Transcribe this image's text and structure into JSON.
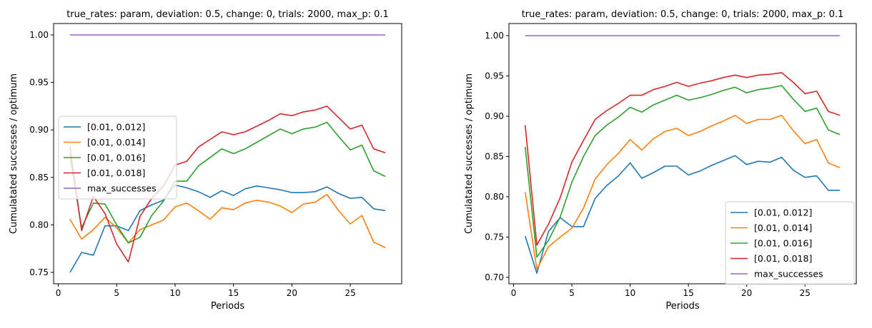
{
  "chart_data": [
    {
      "type": "line",
      "title": "true_rates: param, deviation: 0.5, change: 0, trials: 2000, max_p: 0.1",
      "xlabel": "Periods",
      "ylabel": "Cumulatated successes / optimum",
      "xlim": [
        -0.4,
        29.4
      ],
      "ylim": [
        0.738,
        1.012
      ],
      "xticks": [
        0,
        5,
        10,
        15,
        20,
        25
      ],
      "xtick_labels": [
        "0",
        "5",
        "10",
        "15",
        "20",
        "25"
      ],
      "yticks": [
        0.75,
        0.8,
        0.85,
        0.9,
        0.95,
        1.0
      ],
      "ytick_labels": [
        "0.75",
        "0.80",
        "0.85",
        "0.90",
        "0.95",
        "1.00"
      ],
      "legend_position": "center-left",
      "x": [
        1,
        2,
        3,
        4,
        5,
        6,
        7,
        8,
        9,
        10,
        11,
        12,
        13,
        14,
        15,
        16,
        17,
        18,
        19,
        20,
        21,
        22,
        23,
        24,
        25,
        26,
        27,
        28
      ],
      "series": [
        {
          "name": "[0.01, 0.012]",
          "color": "#1f77b4",
          "values": [
            0.75,
            0.771,
            0.768,
            0.799,
            0.799,
            0.794,
            0.815,
            0.821,
            0.826,
            0.842,
            0.839,
            0.835,
            0.829,
            0.836,
            0.831,
            0.838,
            0.841,
            0.839,
            0.837,
            0.834,
            0.834,
            0.835,
            0.84,
            0.833,
            0.828,
            0.829,
            0.817,
            0.815
          ]
        },
        {
          "name": "[0.01, 0.014]",
          "color": "#ff7f0e",
          "values": [
            0.806,
            0.785,
            0.795,
            0.808,
            0.797,
            0.781,
            0.795,
            0.8,
            0.805,
            0.819,
            0.823,
            0.815,
            0.806,
            0.818,
            0.816,
            0.823,
            0.826,
            0.824,
            0.82,
            0.813,
            0.822,
            0.824,
            0.832,
            0.815,
            0.801,
            0.81,
            0.782,
            0.776
          ]
        },
        {
          "name": "[0.01, 0.016]",
          "color": "#2ca02c",
          "values": [
            0.872,
            0.797,
            0.823,
            0.822,
            0.8,
            0.781,
            0.787,
            0.81,
            0.825,
            0.846,
            0.846,
            0.862,
            0.871,
            0.88,
            0.875,
            0.88,
            0.887,
            0.894,
            0.901,
            0.896,
            0.901,
            0.903,
            0.908,
            0.893,
            0.879,
            0.884,
            0.857,
            0.851
          ]
        },
        {
          "name": "[0.01, 0.018]",
          "color": "#d62728",
          "values": [
            0.882,
            0.794,
            0.83,
            0.812,
            0.78,
            0.761,
            0.809,
            0.828,
            0.841,
            0.863,
            0.867,
            0.882,
            0.89,
            0.898,
            0.895,
            0.898,
            0.904,
            0.91,
            0.917,
            0.915,
            0.919,
            0.921,
            0.925,
            0.913,
            0.901,
            0.905,
            0.88,
            0.876
          ]
        },
        {
          "name": "max_successes",
          "color": "#9467bd",
          "values": [
            1,
            1,
            1,
            1,
            1,
            1,
            1,
            1,
            1,
            1,
            1,
            1,
            1,
            1,
            1,
            1,
            1,
            1,
            1,
            1,
            1,
            1,
            1,
            1,
            1,
            1,
            1,
            1
          ]
        }
      ]
    },
    {
      "type": "line",
      "title": "true_rates: param, deviation: 0.5, change: 0, trials: 2000, max_p: 0.1",
      "xlabel": "Periods",
      "ylabel": "Cumulatated successes / optimum",
      "xlim": [
        -0.4,
        29.4
      ],
      "ylim": [
        0.692,
        1.015
      ],
      "xticks": [
        0,
        5,
        10,
        15,
        20,
        25
      ],
      "xtick_labels": [
        "0",
        "5",
        "10",
        "15",
        "20",
        "25"
      ],
      "yticks": [
        0.7,
        0.75,
        0.8,
        0.85,
        0.9,
        0.95,
        1.0
      ],
      "ytick_labels": [
        "0.70",
        "0.75",
        "0.80",
        "0.85",
        "0.90",
        "0.95",
        "1.00"
      ],
      "legend_position": "lower-right",
      "x": [
        1,
        2,
        3,
        4,
        5,
        6,
        7,
        8,
        9,
        10,
        11,
        12,
        13,
        14,
        15,
        16,
        17,
        18,
        19,
        20,
        21,
        22,
        23,
        24,
        25,
        26,
        27,
        28
      ],
      "series": [
        {
          "name": "[0.01, 0.012]",
          "color": "#1f77b4",
          "values": [
            0.751,
            0.705,
            0.757,
            0.774,
            0.763,
            0.763,
            0.798,
            0.814,
            0.826,
            0.842,
            0.823,
            0.83,
            0.838,
            0.838,
            0.827,
            0.832,
            0.839,
            0.845,
            0.851,
            0.84,
            0.844,
            0.843,
            0.849,
            0.833,
            0.824,
            0.826,
            0.808,
            0.808
          ]
        },
        {
          "name": "[0.01, 0.014]",
          "color": "#ff7f0e",
          "values": [
            0.806,
            0.71,
            0.738,
            0.75,
            0.761,
            0.786,
            0.822,
            0.84,
            0.854,
            0.871,
            0.858,
            0.872,
            0.881,
            0.885,
            0.876,
            0.881,
            0.888,
            0.894,
            0.901,
            0.891,
            0.896,
            0.896,
            0.901,
            0.882,
            0.866,
            0.871,
            0.842,
            0.836
          ]
        },
        {
          "name": "[0.01, 0.016]",
          "color": "#2ca02c",
          "values": [
            0.862,
            0.725,
            0.746,
            0.775,
            0.818,
            0.85,
            0.876,
            0.889,
            0.899,
            0.911,
            0.905,
            0.914,
            0.92,
            0.926,
            0.92,
            0.923,
            0.927,
            0.932,
            0.936,
            0.929,
            0.933,
            0.935,
            0.938,
            0.921,
            0.906,
            0.91,
            0.883,
            0.877
          ]
        },
        {
          "name": "[0.01, 0.018]",
          "color": "#d62728",
          "values": [
            0.889,
            0.74,
            0.766,
            0.799,
            0.843,
            0.87,
            0.896,
            0.907,
            0.916,
            0.926,
            0.926,
            0.933,
            0.937,
            0.942,
            0.937,
            0.941,
            0.944,
            0.948,
            0.951,
            0.948,
            0.951,
            0.952,
            0.954,
            0.942,
            0.928,
            0.931,
            0.906,
            0.901
          ]
        },
        {
          "name": "max_successes",
          "color": "#9467bd",
          "values": [
            1,
            1,
            1,
            1,
            1,
            1,
            1,
            1,
            1,
            1,
            1,
            1,
            1,
            1,
            1,
            1,
            1,
            1,
            1,
            1,
            1,
            1,
            1,
            1,
            1,
            1,
            1,
            1
          ]
        }
      ]
    }
  ]
}
